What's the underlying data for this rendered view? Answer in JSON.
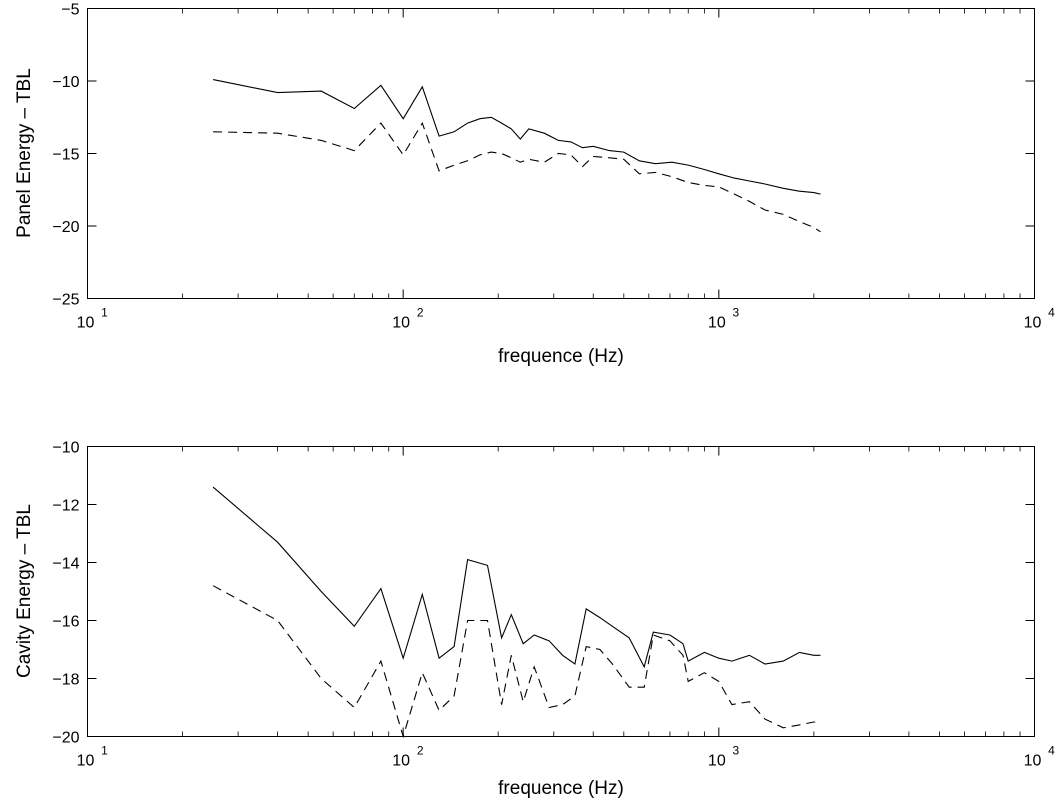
{
  "chart_data": [
    {
      "type": "line",
      "title": "",
      "xlabel": "frequence (Hz)",
      "ylabel": "Panel Energy – TBL",
      "xscale": "log",
      "xlim": [
        10,
        10000
      ],
      "ylim": [
        -25,
        -5
      ],
      "x_ticks": [
        10,
        100,
        1000,
        10000
      ],
      "x_tick_labels": [
        {
          "base": "10",
          "exp": "1"
        },
        {
          "base": "10",
          "exp": "2"
        },
        {
          "base": "10",
          "exp": "3"
        },
        {
          "base": "10",
          "exp": "4"
        }
      ],
      "y_ticks": [
        -25,
        -20,
        -15,
        -10,
        -5
      ],
      "y_tick_labels": [
        "−25",
        "−20",
        "−15",
        "−10",
        "−5"
      ],
      "grid": false,
      "series": [
        {
          "style": "solid",
          "x": [
            25,
            40,
            55,
            70,
            85,
            100,
            115,
            130,
            145,
            160,
            175,
            190,
            205,
            220,
            235,
            250,
            280,
            310,
            340,
            370,
            400,
            450,
            500,
            560,
            630,
            710,
            800,
            900,
            1000,
            1120,
            1250,
            1400,
            1600,
            1800,
            2000,
            2100
          ],
          "y": [
            -9.9,
            -10.8,
            -10.7,
            -11.9,
            -10.3,
            -12.6,
            -10.4,
            -13.8,
            -13.5,
            -12.9,
            -12.6,
            -12.5,
            -12.9,
            -13.3,
            -14.0,
            -13.3,
            -13.6,
            -14.1,
            -14.2,
            -14.6,
            -14.5,
            -14.8,
            -14.9,
            -15.5,
            -15.7,
            -15.6,
            -15.8,
            -16.1,
            -16.4,
            -16.7,
            -16.9,
            -17.1,
            -17.4,
            -17.6,
            -17.7,
            -17.8
          ]
        },
        {
          "style": "dashed",
          "x": [
            25,
            40,
            55,
            70,
            85,
            100,
            115,
            130,
            145,
            160,
            175,
            190,
            205,
            220,
            235,
            250,
            280,
            310,
            340,
            370,
            400,
            450,
            500,
            560,
            630,
            710,
            800,
            900,
            1000,
            1120,
            1250,
            1400,
            1600,
            1800,
            2000,
            2100
          ],
          "y": [
            -13.5,
            -13.6,
            -14.1,
            -14.8,
            -12.9,
            -15.1,
            -12.9,
            -16.2,
            -15.8,
            -15.5,
            -15.1,
            -14.9,
            -15.0,
            -15.3,
            -15.6,
            -15.4,
            -15.6,
            -15.0,
            -15.1,
            -15.9,
            -15.2,
            -15.3,
            -15.4,
            -16.4,
            -16.3,
            -16.6,
            -17.0,
            -17.2,
            -17.3,
            -17.8,
            -18.3,
            -18.9,
            -19.2,
            -19.7,
            -20.1,
            -20.4
          ]
        }
      ]
    },
    {
      "type": "line",
      "title": "",
      "xlabel": "frequence (Hz)",
      "ylabel": "Cavity Energy – TBL",
      "xscale": "log",
      "xlim": [
        10,
        10000
      ],
      "ylim": [
        -20,
        -10
      ],
      "x_ticks": [
        10,
        100,
        1000,
        10000
      ],
      "x_tick_labels": [
        {
          "base": "10",
          "exp": "1"
        },
        {
          "base": "10",
          "exp": "2"
        },
        {
          "base": "10",
          "exp": "3"
        },
        {
          "base": "10",
          "exp": "4"
        }
      ],
      "y_ticks": [
        -20,
        -18,
        -16,
        -14,
        -12,
        -10
      ],
      "y_tick_labels": [
        "−20",
        "−18",
        "−16",
        "−14",
        "−12",
        "−10"
      ],
      "grid": false,
      "series": [
        {
          "style": "solid",
          "x": [
            25,
            40,
            55,
            70,
            85,
            100,
            115,
            130,
            145,
            160,
            185,
            205,
            220,
            240,
            260,
            290,
            320,
            350,
            380,
            420,
            460,
            520,
            580,
            620,
            700,
            770,
            800,
            900,
            1000,
            1100,
            1250,
            1400,
            1600,
            1800,
            2000,
            2100
          ],
          "y": [
            -11.4,
            -13.3,
            -15.0,
            -16.2,
            -14.9,
            -17.3,
            -15.1,
            -17.3,
            -16.9,
            -13.9,
            -14.1,
            -16.6,
            -15.8,
            -16.8,
            -16.5,
            -16.7,
            -17.2,
            -17.5,
            -15.6,
            -15.9,
            -16.2,
            -16.6,
            -17.6,
            -16.4,
            -16.5,
            -16.8,
            -17.4,
            -17.1,
            -17.3,
            -17.4,
            -17.2,
            -17.5,
            -17.4,
            -17.1,
            -17.2,
            -17.2
          ]
        },
        {
          "style": "dashed",
          "x": [
            25,
            40,
            55,
            70,
            85,
            100,
            115,
            130,
            145,
            160,
            185,
            205,
            220,
            240,
            260,
            290,
            320,
            350,
            380,
            420,
            460,
            520,
            580,
            620,
            700,
            770,
            800,
            900,
            1000,
            1100,
            1250,
            1400,
            1600,
            1800,
            2000,
            2100
          ],
          "y": [
            -14.8,
            -16.0,
            -18.0,
            -19.0,
            -17.4,
            -20.0,
            -17.8,
            -19.1,
            -18.6,
            -16.0,
            -16.0,
            -18.9,
            -17.2,
            -18.8,
            -17.6,
            -19.0,
            -18.9,
            -18.6,
            -16.9,
            -17.0,
            -17.5,
            -18.3,
            -18.3,
            -16.5,
            -16.7,
            -17.2,
            -18.1,
            -17.8,
            -18.1,
            -18.9,
            -18.8,
            -19.4,
            -19.7,
            -19.6,
            -19.5,
            -19.5
          ]
        }
      ]
    }
  ]
}
